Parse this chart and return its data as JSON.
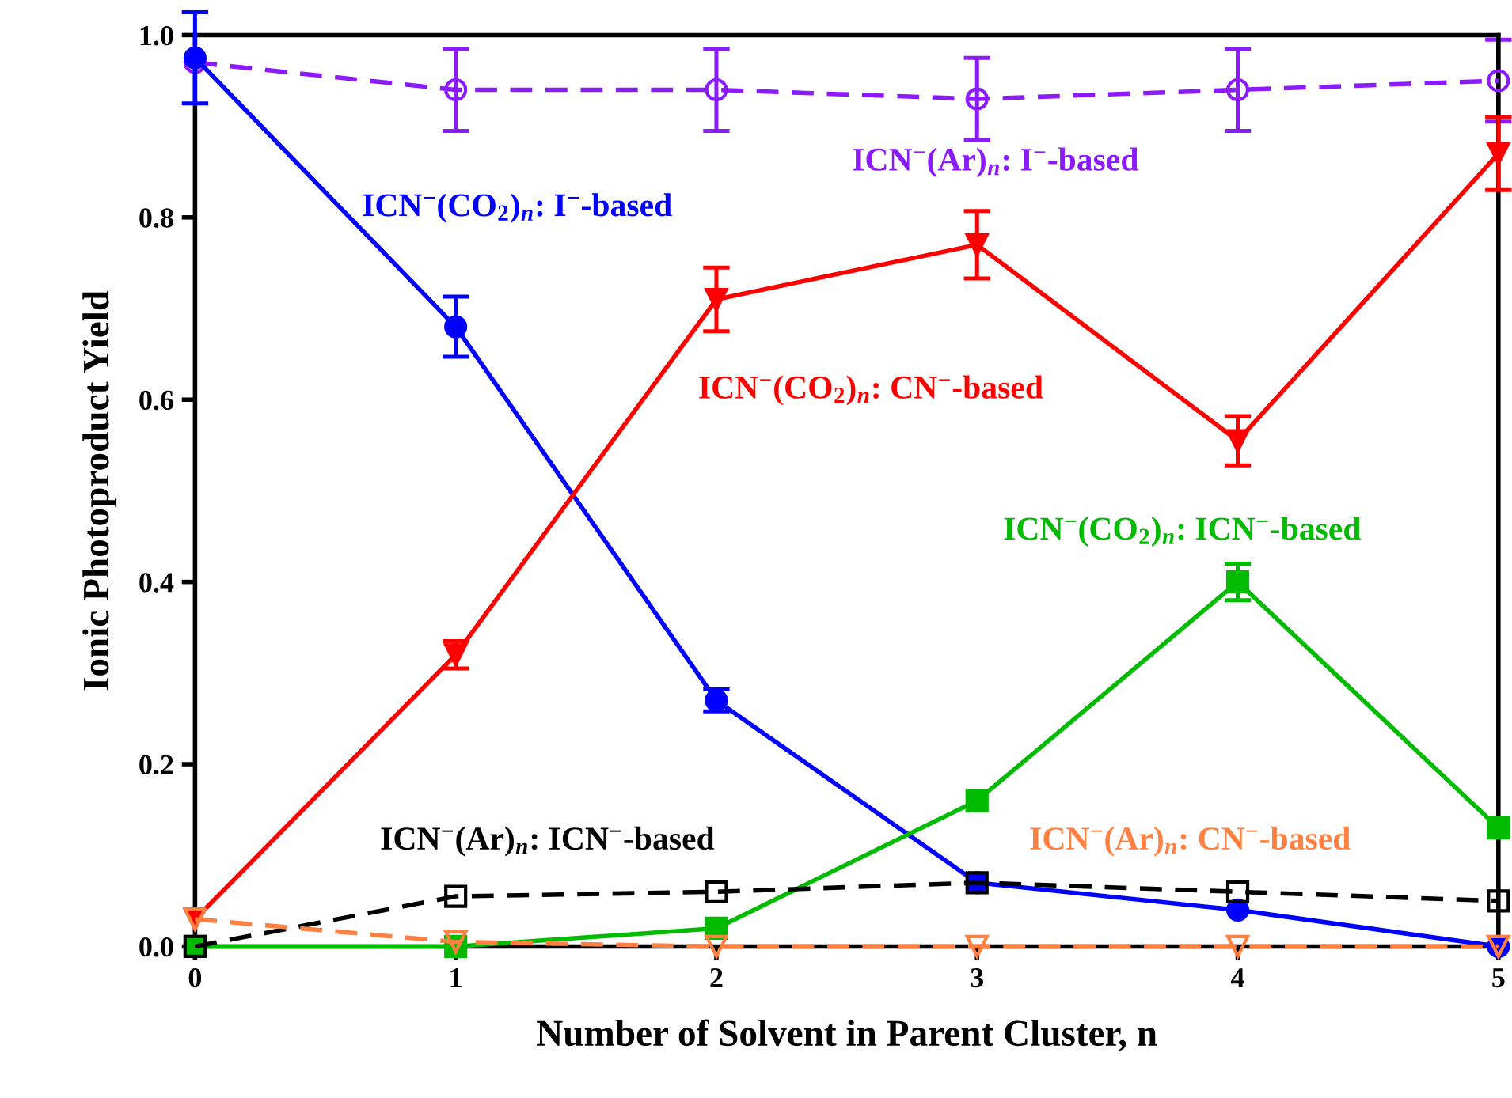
{
  "chart_data": {
    "type": "line",
    "xlabel": "Number of Solvent in Parent Cluster, n",
    "ylabel": "Ionic Photoproduct Yield",
    "x": [
      0,
      1,
      2,
      3,
      4,
      5
    ],
    "xlim": [
      0,
      5
    ],
    "xticks": [
      0,
      1,
      2,
      3,
      4,
      5
    ],
    "ylim": [
      0,
      1.0
    ],
    "yticks": [
      {
        "value": 0,
        "label": "0.0"
      },
      {
        "value": 0.2,
        "label": "0.2"
      },
      {
        "value": 0.4,
        "label": "0.4"
      },
      {
        "value": 0.6,
        "label": "0.6"
      },
      {
        "value": 0.8,
        "label": "0.8"
      },
      {
        "value": 1.0,
        "label": "1.0"
      }
    ],
    "grid": false,
    "legend": false,
    "series": [
      {
        "name": "ICN$^{−}$(Ar)$_{n}$: I$^{−}$-based",
        "color": "#8b1aff",
        "marker": "circle",
        "line_style": "dashed",
        "values": [
          0.97,
          0.94,
          0.94,
          0.93,
          0.94,
          0.95
        ],
        "errors": [
          null,
          0.045,
          0.045,
          0.045,
          0.045,
          0.045
        ]
      },
      {
        "name": "ICN$^{−}$(CO$_{2}$)$_{n}$: I$^{−}$-based",
        "color": "#0000ff",
        "marker": "circle",
        "line_style": "solid",
        "values": [
          0.975,
          0.68,
          0.27,
          0.07,
          0.04,
          0.0
        ],
        "errors": [
          0.05,
          0.033,
          0.012,
          null,
          null,
          null
        ]
      },
      {
        "name": "ICN$^{−}$(CO$_{2}$)$_{n}$: CN$^{−}$-based",
        "color": "#ff0000",
        "marker": "triangle_down",
        "line_style": "solid",
        "values": [
          0.03,
          0.32,
          0.71,
          0.77,
          0.555,
          0.87
        ],
        "errors": [
          null,
          0.015,
          0.035,
          0.037,
          0.027,
          0.04
        ]
      },
      {
        "name": "ICN$^{−}$(CO$_{2}$)$_{n}$: ICN$^{−}$-based",
        "color": "#00bb00",
        "marker": "square",
        "line_style": "solid",
        "values": [
          0.0,
          0.0,
          0.02,
          0.16,
          0.4,
          0.13
        ],
        "errors": [
          null,
          null,
          null,
          null,
          0.02,
          null
        ]
      },
      {
        "name": "ICN$^{−}$(Ar)$_{n}$: ICN$^{−}$-based",
        "color": "#000000",
        "marker": "square",
        "line_style": "dashed",
        "values": [
          0.0,
          0.055,
          0.06,
          0.07,
          0.06,
          0.05
        ]
      },
      {
        "name": "ICN$^{−}$(Ar)$_{n}$: CN$^{−}$-based",
        "color": "#ff8040",
        "marker": "triangle_down",
        "line_style": "dashed",
        "values": [
          0.03,
          0.005,
          0.0,
          0.0,
          0.0,
          0.0
        ]
      }
    ]
  }
}
